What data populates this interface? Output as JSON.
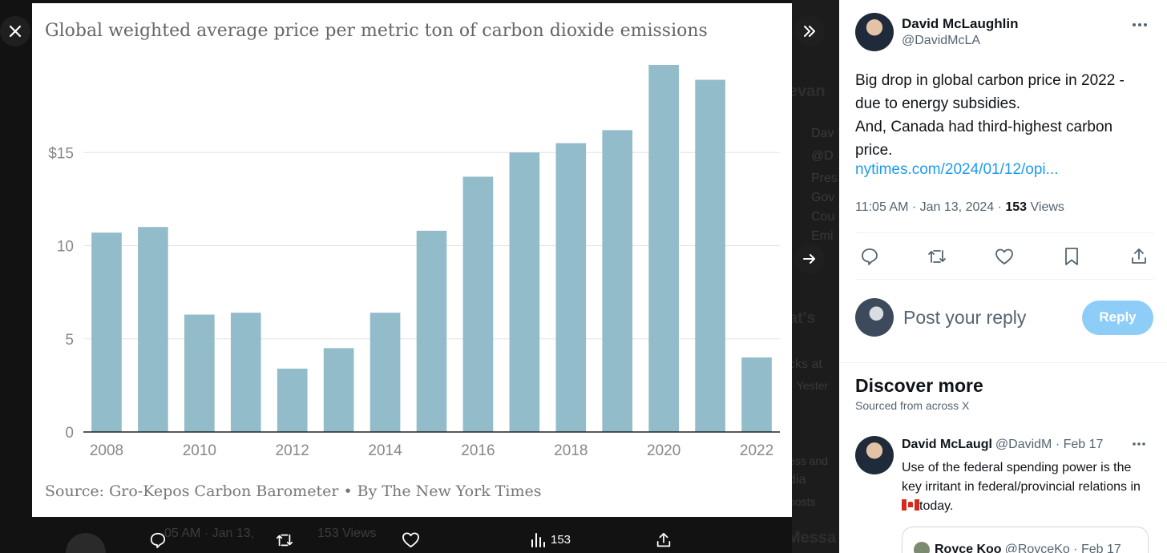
{
  "viewer": {
    "chart_title": "Global weighted average price per metric ton of carbon dioxide emissions",
    "chart_source": "Source: Gro-Kepos Carbon Barometer • By The New York Times",
    "action_bar": {
      "views": "153"
    },
    "background_row": {
      "time": "05 AM · Jan 13,",
      "views": "153",
      "views_label": "Views"
    },
    "background_fragments": [
      "evan",
      "Dav",
      "@D",
      "Pres",
      "Gov",
      "Cou",
      "Emi",
      "at's",
      "cks at",
      "Yester",
      "ess and",
      "dia",
      "posts",
      "Messa"
    ]
  },
  "chart_data": {
    "type": "bar",
    "title": "Global weighted average price per metric ton of carbon dioxide emissions",
    "source": "Source: Gro-Kepos Carbon Barometer • By The New York Times",
    "x": [
      2008,
      2009,
      2010,
      2011,
      2012,
      2013,
      2014,
      2015,
      2016,
      2017,
      2018,
      2019,
      2020,
      2021,
      2022
    ],
    "values": [
      10.7,
      11.0,
      6.3,
      6.4,
      3.4,
      4.5,
      6.4,
      10.8,
      13.7,
      15.0,
      15.5,
      16.2,
      19.7,
      18.9,
      4.0
    ],
    "x_tick_labels": [
      "2008",
      "2010",
      "2012",
      "2014",
      "2016",
      "2018",
      "2020",
      "2022"
    ],
    "y_ticks": [
      {
        "value": 0,
        "label": "0"
      },
      {
        "value": 5,
        "label": "5"
      },
      {
        "value": 10,
        "label": "10"
      },
      {
        "value": 15,
        "label": "$15"
      }
    ],
    "ylim": [
      0,
      20
    ],
    "grid": true,
    "bar_color": "#93bccb"
  },
  "tweet": {
    "display_name": "David McLaughlin",
    "handle": "@DavidMcLA",
    "text_line1": "Big drop in global carbon price in 2022 - due to energy subsidies.",
    "text_line2": "And, Canada had third-highest carbon price.",
    "link": "nytimes.com/2024/01/12/opi...",
    "time": "11:05 AM · Jan 13, 2024 · ",
    "views": "153",
    "views_label": " Views"
  },
  "reply": {
    "placeholder": "Post your reply",
    "button": "Reply"
  },
  "discover": {
    "title": "Discover more",
    "subtitle": "Sourced from across X",
    "rec": {
      "name": "David McLaugl",
      "handle": "@DavidM · Feb 17",
      "text_before_flag": "Use of the federal spending power is the key irritant in federal/provincial relations in",
      "text_after_flag": "today.",
      "quote_name": "Royce Koo",
      "quote_handle": "@RoyceKo · Feb 17"
    }
  },
  "colors": {
    "accent": "#1d9bf0",
    "reply_button": "#8ecdf8",
    "bar": "#93bccb"
  }
}
